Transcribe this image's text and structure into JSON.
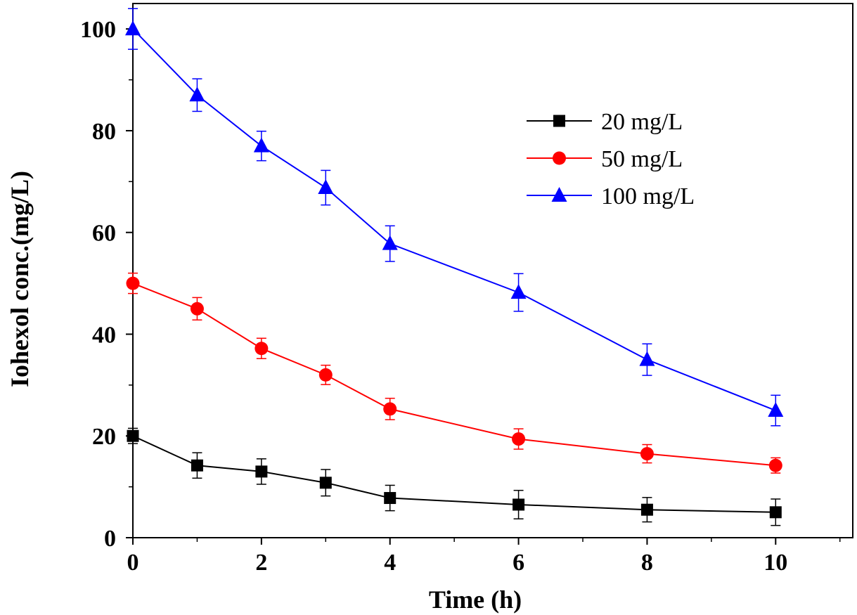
{
  "chart_data": {
    "type": "line",
    "title": "",
    "xlabel": "Time (h)",
    "ylabel": "Iohexol conc.(mg/L)",
    "xlim": [
      0,
      11.2
    ],
    "ylim": [
      0,
      105
    ],
    "x_ticks": [
      0,
      2,
      4,
      6,
      8,
      10
    ],
    "x_tick_labels": [
      "0",
      "2",
      "4",
      "6",
      "8",
      "10"
    ],
    "y_ticks": [
      0,
      20,
      40,
      60,
      80,
      100
    ],
    "y_tick_labels": [
      "0",
      "20",
      "40",
      "60",
      "80",
      "100"
    ],
    "grid": false,
    "legend_position": "top-right",
    "x": [
      0,
      1,
      2,
      3,
      4,
      6,
      8,
      10
    ],
    "series": [
      {
        "name": "20 mg/L",
        "color": "#000000",
        "marker": "square",
        "values": [
          20,
          14.2,
          13,
          10.8,
          7.8,
          6.5,
          5.5,
          5
        ],
        "errors": [
          1.5,
          2.5,
          2.5,
          2.6,
          2.5,
          2.8,
          2.4,
          2.6
        ]
      },
      {
        "name": "50 mg/L",
        "color": "#ff0000",
        "marker": "circle",
        "values": [
          50,
          45,
          37.2,
          32,
          25.3,
          19.4,
          16.5,
          14.2
        ],
        "errors": [
          2,
          2.2,
          2,
          1.9,
          2.1,
          2,
          1.8,
          1.5
        ]
      },
      {
        "name": "100 mg/L",
        "color": "#0000ff",
        "marker": "triangle",
        "values": [
          100,
          87,
          77,
          68.8,
          57.8,
          48.2,
          35,
          25
        ],
        "errors": [
          4,
          3.2,
          2.9,
          3.4,
          3.5,
          3.7,
          3.1,
          3
        ]
      }
    ]
  }
}
